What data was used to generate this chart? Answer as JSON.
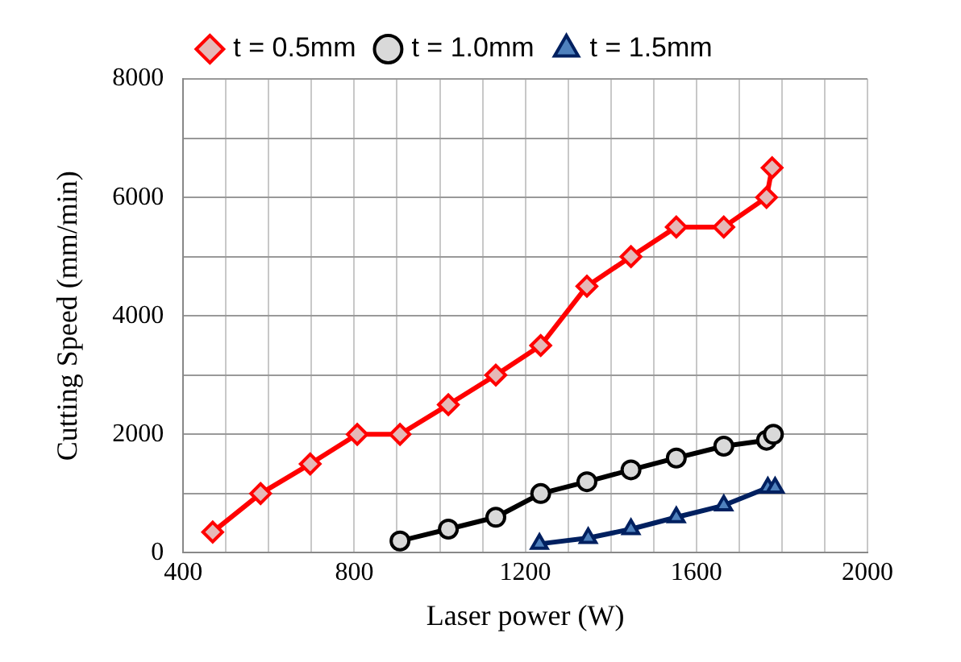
{
  "chart_data": {
    "type": "line",
    "xlabel": "Laser power (W)",
    "ylabel": "Cutting Speed (mm/min)",
    "xlim": [
      400,
      2000
    ],
    "ylim": [
      0,
      8000
    ],
    "xticks": [
      400,
      {
        "value": 500,
        "label": null
      },
      {
        "value": 600,
        "label": null
      },
      {
        "value": 700,
        "label": null
      },
      800,
      {
        "value": 900,
        "label": null
      },
      {
        "value": 1000,
        "label": null
      },
      {
        "value": 1100,
        "label": null
      },
      1200,
      {
        "value": 1300,
        "label": null
      },
      {
        "value": 1400,
        "label": null
      },
      {
        "value": 1500,
        "label": null
      },
      1600,
      {
        "value": 1700,
        "label": null
      },
      {
        "value": 1800,
        "label": null
      },
      {
        "value": 1900,
        "label": null
      },
      2000
    ],
    "yticks": [
      0,
      {
        "value": 1000,
        "label": null
      },
      2000,
      {
        "value": 3000,
        "label": null
      },
      4000,
      {
        "value": 5000,
        "label": null
      },
      6000,
      {
        "value": 7000,
        "label": null
      },
      8000
    ],
    "grid": true,
    "legend": "top",
    "line_style": "solid",
    "series": [
      {
        "name": "t = 0.5mm",
        "color": "#ff0000",
        "marker": "diamond",
        "x": [
          469,
          581,
          697,
          807,
          907,
          1020,
          1131,
          1236,
          1344,
          1447,
          1553,
          1664,
          1764,
          1777
        ],
        "values": [
          350,
          1000,
          1500,
          2000,
          2000,
          2500,
          3000,
          3500,
          4500,
          5000,
          5500,
          5500,
          6000,
          6500
        ]
      },
      {
        "name": "t = 1.0mm",
        "color": "#000000",
        "marker": "circle",
        "x": [
          907,
          1020,
          1131,
          1236,
          1344,
          1447,
          1553,
          1664,
          1764,
          1780
        ],
        "values": [
          200,
          400,
          600,
          1000,
          1200,
          1400,
          1600,
          1800,
          1900,
          2000
        ]
      },
      {
        "name": "t = 1.5mm",
        "color": "#002060",
        "marker": "triangle",
        "x": [
          1233,
          1347,
          1447,
          1553,
          1664,
          1767,
          1784
        ],
        "values": [
          150,
          250,
          400,
          600,
          800,
          1100,
          1100
        ]
      }
    ]
  }
}
